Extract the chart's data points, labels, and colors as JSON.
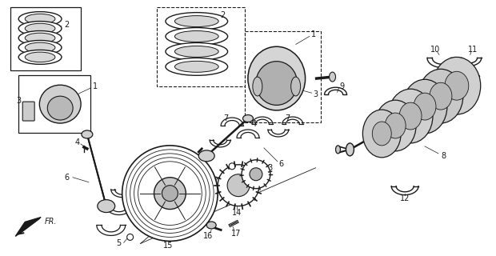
{
  "background_color": "#ffffff",
  "line_color": "#1a1a1a",
  "fig_width": 6.2,
  "fig_height": 3.2,
  "dpi": 100
}
